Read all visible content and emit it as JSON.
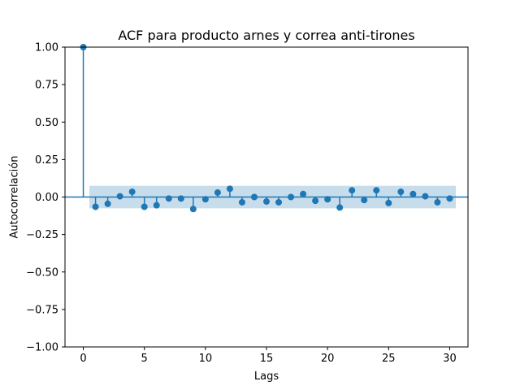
{
  "chart_data": {
    "type": "scatter",
    "subtype": "autocorrelation-stem",
    "title": "ACF para producto arnes y correa anti-tirones",
    "xlabel": "Lags",
    "ylabel": "Autocorrelación",
    "xlim": [
      -1.5,
      31.5
    ],
    "ylim": [
      -1.0,
      1.0
    ],
    "x_ticks": [
      0,
      5,
      10,
      15,
      20,
      25,
      30
    ],
    "y_ticks": [
      -1.0,
      -0.75,
      -0.5,
      -0.25,
      0.0,
      0.25,
      0.5,
      0.75,
      1.0
    ],
    "y_tick_labels": [
      "−1.00",
      "−0.75",
      "−0.50",
      "−0.25",
      "0.00",
      "0.25",
      "0.50",
      "0.75",
      "1.00"
    ],
    "x_tick_labels": [
      "0",
      "5",
      "10",
      "15",
      "20",
      "25",
      "30"
    ],
    "grid": false,
    "color": "#1f77b4",
    "confidence_band": {
      "color": "#1f77b4",
      "opacity": 0.25,
      "x_start": 0.5,
      "x_end": 30.5,
      "lower": -0.075,
      "upper": 0.075
    },
    "lags": [
      0,
      1,
      2,
      3,
      4,
      5,
      6,
      7,
      8,
      9,
      10,
      11,
      12,
      13,
      14,
      15,
      16,
      17,
      18,
      19,
      20,
      21,
      22,
      23,
      24,
      25,
      26,
      27,
      28,
      29,
      30
    ],
    "values": [
      1.0,
      -0.065,
      -0.045,
      0.005,
      0.035,
      -0.065,
      -0.055,
      -0.01,
      -0.01,
      -0.08,
      -0.015,
      0.03,
      0.055,
      -0.035,
      0.0,
      -0.03,
      -0.035,
      0.0,
      0.02,
      -0.025,
      -0.015,
      -0.07,
      0.045,
      -0.02,
      0.045,
      -0.04,
      0.035,
      0.02,
      0.005,
      -0.035,
      -0.01
    ]
  }
}
